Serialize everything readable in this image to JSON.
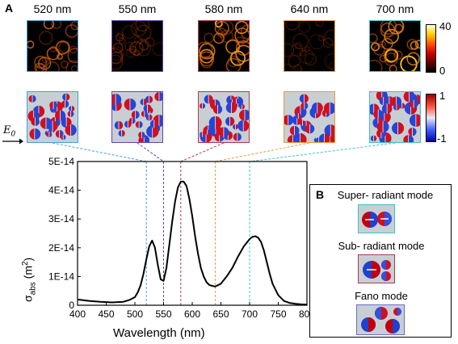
{
  "panel_a_label": "A",
  "panel_b_label": "B",
  "wavelength_labels": [
    "520 nm",
    "550 nm",
    "580 nm",
    "640 nm",
    "700 nm"
  ],
  "thumb_border_colors": [
    "#3fa0d8",
    "#6a3fb0",
    "#b03a4a",
    "#e89a3a",
    "#40c0c0"
  ],
  "heat_colorbar": {
    "max": "40",
    "min": "0"
  },
  "field_colorbar": {
    "max": "1",
    "min": "-1"
  },
  "field_vector_label": "E",
  "field_vector_subscript": "0",
  "modes": [
    {
      "title": "Super- radiant mode",
      "border": "#40c0c0"
    },
    {
      "title": "Sub- radiant mode",
      "border": "#b03a4a"
    },
    {
      "title": "Fano mode",
      "border": "#6a6ad0"
    }
  ],
  "chart_data": {
    "type": "line",
    "xlabel": "Wavelength (nm)",
    "ylabel_main": "σ",
    "ylabel_sub": "abs",
    "ylabel_unit": " (m",
    "ylabel_unit_sup": "2",
    "ylabel_unit_end": ")",
    "xlim": [
      400,
      800
    ],
    "ylim": [
      0,
      5e-14
    ],
    "xticks": [
      400,
      450,
      500,
      550,
      600,
      650,
      700,
      750,
      800
    ],
    "yticks": [
      "0",
      "1E-14",
      "2E-14",
      "3E-14",
      "4E-14",
      "5E-14"
    ],
    "ytick_values": [
      0,
      1e-14,
      2e-14,
      3e-14,
      4e-14,
      5e-14
    ],
    "vlines": [
      {
        "x": 520,
        "color": "#3fa0d8"
      },
      {
        "x": 550,
        "color": "#6a3fb0"
      },
      {
        "x": 580,
        "color": "#b03a4a"
      },
      {
        "x": 640,
        "color": "#e89a3a"
      },
      {
        "x": 700,
        "color": "#40c0c0"
      }
    ],
    "series": [
      {
        "x": [
          400,
          420,
          440,
          460,
          480,
          490,
          500,
          505,
          510,
          515,
          520,
          525,
          530,
          535,
          540,
          545,
          550,
          555,
          560,
          565,
          570,
          575,
          580,
          585,
          590,
          595,
          600,
          605,
          610,
          615,
          620,
          625,
          630,
          640,
          650,
          660,
          670,
          680,
          690,
          700,
          705,
          710,
          715,
          720,
          725,
          730,
          735,
          740,
          750,
          760,
          770,
          780,
          790,
          800
        ],
        "y": [
          2e-15,
          1.5e-15,
          1.2e-15,
          1e-15,
          1.2e-15,
          1.8e-15,
          2.8e-15,
          4.5e-15,
          7e-15,
          1.1e-14,
          1.6e-14,
          2.05e-14,
          2.25e-14,
          2e-14,
          1.4e-14,
          9e-15,
          8.5e-15,
          1.3e-14,
          2.1e-14,
          2.9e-14,
          3.6e-14,
          4.1e-14,
          4.3e-14,
          4.3e-14,
          4.15e-14,
          3.7e-14,
          3.1e-14,
          2.4e-14,
          1.8e-14,
          1.3e-14,
          1e-14,
          8e-15,
          7e-15,
          6.5e-15,
          7.5e-15,
          1e-14,
          1.3e-14,
          1.7e-14,
          2.05e-14,
          2.3e-14,
          2.38e-14,
          2.4e-14,
          2.35e-14,
          2.2e-14,
          1.9e-14,
          1.5e-14,
          1.1e-14,
          7.5e-15,
          3.5e-15,
          1.5e-15,
          8e-16,
          5e-16,
          3e-16,
          2e-16
        ]
      }
    ]
  }
}
